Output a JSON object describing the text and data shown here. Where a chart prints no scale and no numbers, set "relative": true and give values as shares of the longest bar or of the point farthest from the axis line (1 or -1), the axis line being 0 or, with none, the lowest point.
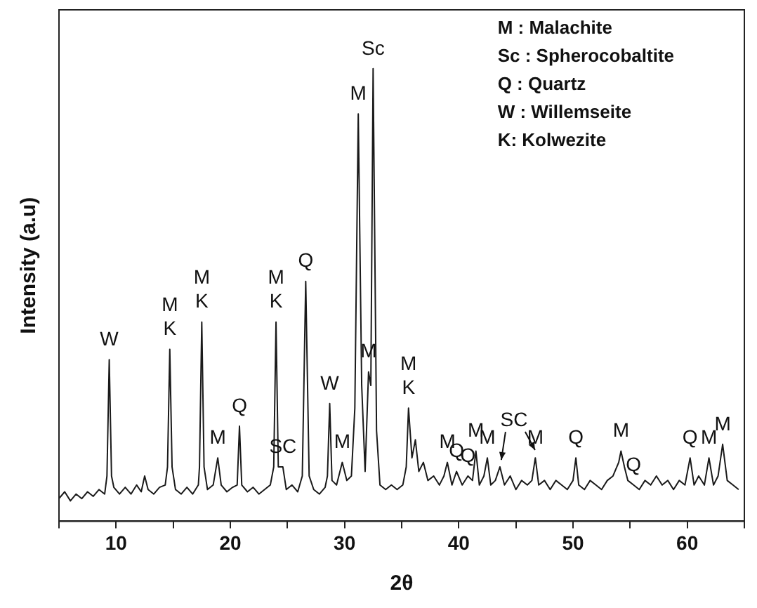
{
  "chart_data": {
    "type": "line",
    "relative": true,
    "xlabel": "2θ",
    "ylabel": "Intensity (a.u)",
    "xlim": [
      5,
      65
    ],
    "xticks": [
      {
        "value": 5,
        "label": null
      },
      10,
      {
        "value": 15,
        "label": null
      },
      20,
      {
        "value": 25,
        "label": null
      },
      30,
      {
        "value": 35,
        "label": null
      },
      40,
      {
        "value": 45,
        "label": null
      },
      50,
      {
        "value": 55,
        "label": null
      },
      60,
      {
        "value": 65,
        "label": null
      }
    ],
    "grid": false,
    "legend": false,
    "marker": "none",
    "line_style": "solid",
    "series": [
      {
        "color": "#1a1a1a",
        "x": [
          5,
          5.5,
          6,
          6.5,
          7,
          7.5,
          8,
          8.5,
          9,
          9.2,
          9.4,
          9.6,
          9.8,
          10.3,
          10.8,
          11.3,
          11.8,
          12.2,
          12.5,
          12.8,
          13.3,
          13.8,
          14.3,
          14.5,
          14.7,
          14.9,
          15.2,
          15.7,
          16.2,
          16.7,
          17.2,
          17.3,
          17.5,
          17.7,
          18,
          18.5,
          18.9,
          19.2,
          19.7,
          20.2,
          20.6,
          20.8,
          21,
          21.5,
          22,
          22.5,
          23,
          23.5,
          23.8,
          24,
          24.2,
          24.6,
          24.9,
          25.4,
          25.9,
          26.3,
          26.6,
          26.9,
          27.3,
          27.8,
          28.3,
          28.5,
          28.7,
          28.9,
          29.3,
          29.8,
          30.2,
          30.6,
          30.9,
          31.2,
          31.5,
          31.8,
          32.1,
          32.3,
          32.5,
          32.8,
          33.1,
          33.6,
          34.1,
          34.6,
          35.1,
          35.4,
          35.6,
          35.9,
          36.2,
          36.5,
          36.9,
          37.3,
          37.8,
          38.3,
          38.7,
          39,
          39.4,
          39.8,
          40.3,
          40.8,
          41.2,
          41.5,
          41.8,
          42.2,
          42.5,
          42.8,
          43.2,
          43.6,
          44,
          44.5,
          45,
          45.5,
          46,
          46.4,
          46.7,
          47,
          47.5,
          48,
          48.5,
          49,
          49.5,
          50,
          50.25,
          50.5,
          51,
          51.5,
          52,
          52.5,
          53,
          53.5,
          54,
          54.2,
          54.5,
          54.8,
          55.3,
          55.8,
          56.3,
          56.8,
          57.3,
          57.8,
          58.3,
          58.8,
          59.3,
          59.8,
          60.25,
          60.6,
          61,
          61.5,
          61.9,
          62.3,
          62.7,
          63.1,
          63.5,
          64,
          64.5
        ],
        "values": [
          0.05,
          0.065,
          0.045,
          0.06,
          0.05,
          0.065,
          0.055,
          0.07,
          0.06,
          0.1,
          0.357,
          0.1,
          0.075,
          0.06,
          0.075,
          0.06,
          0.08,
          0.065,
          0.1,
          0.07,
          0.06,
          0.075,
          0.08,
          0.12,
          0.38,
          0.12,
          0.07,
          0.06,
          0.075,
          0.06,
          0.08,
          0.12,
          0.44,
          0.12,
          0.07,
          0.08,
          0.14,
          0.08,
          0.065,
          0.075,
          0.08,
          0.21,
          0.08,
          0.065,
          0.075,
          0.06,
          0.07,
          0.08,
          0.12,
          0.44,
          0.12,
          0.12,
          0.07,
          0.08,
          0.065,
          0.1,
          0.53,
          0.1,
          0.07,
          0.06,
          0.075,
          0.1,
          0.26,
          0.09,
          0.08,
          0.13,
          0.09,
          0.1,
          0.25,
          0.9,
          0.3,
          0.11,
          0.33,
          0.3,
          1,
          0.2,
          0.08,
          0.07,
          0.08,
          0.07,
          0.08,
          0.12,
          0.25,
          0.14,
          0.18,
          0.11,
          0.13,
          0.09,
          0.1,
          0.08,
          0.1,
          0.13,
          0.08,
          0.11,
          0.08,
          0.1,
          0.09,
          0.155,
          0.08,
          0.1,
          0.14,
          0.08,
          0.09,
          0.12,
          0.08,
          0.1,
          0.07,
          0.09,
          0.08,
          0.09,
          0.14,
          0.08,
          0.09,
          0.07,
          0.09,
          0.08,
          0.07,
          0.09,
          0.14,
          0.08,
          0.07,
          0.09,
          0.08,
          0.07,
          0.09,
          0.1,
          0.13,
          0.155,
          0.12,
          0.09,
          0.08,
          0.07,
          0.09,
          0.08,
          0.1,
          0.08,
          0.09,
          0.07,
          0.09,
          0.08,
          0.14,
          0.08,
          0.1,
          0.08,
          0.14,
          0.08,
          0.1,
          0.17,
          0.09,
          0.08,
          0.07
        ]
      }
    ],
    "annotations": [
      "M : Malachite",
      "Sc : Spherocobaltite",
      "Q : Quartz",
      "W : Willemseite",
      "K: Kolwezite",
      {
        "text": "W",
        "x": 9.4,
        "y": 0.357
      },
      {
        "text": "M",
        "x": 14.7,
        "y": 0.38
      },
      {
        "text": "K",
        "x": 14.7,
        "y": 0.38
      },
      {
        "text": "M",
        "x": 17.5,
        "y": 0.44
      },
      {
        "text": "K",
        "x": 17.5,
        "y": 0.44
      },
      {
        "text": "M",
        "x": 18.9,
        "y": 0.14
      },
      {
        "text": "Q",
        "x": 20.8,
        "y": 0.21
      },
      {
        "text": "M",
        "x": 24,
        "y": 0.44
      },
      {
        "text": "K",
        "x": 24,
        "y": 0.44
      },
      {
        "text": "SC",
        "x": 24.6,
        "y": 0.12
      },
      {
        "text": "Q",
        "x": 26.6,
        "y": 0.53
      },
      {
        "text": "W",
        "x": 28.7,
        "y": 0.26
      },
      {
        "text": "M",
        "x": 29.8,
        "y": 0.13
      },
      {
        "text": "M",
        "x": 31.2,
        "y": 0.9
      },
      {
        "text": "M",
        "x": 32.1,
        "y": 0.33
      },
      {
        "text": "Sc",
        "x": 32.5,
        "y": 1
      },
      {
        "text": "M",
        "x": 35.6,
        "y": 0.25
      },
      {
        "text": "K",
        "x": 35.6,
        "y": 0.25
      },
      {
        "text": "M",
        "x": 39,
        "y": 0.13
      },
      {
        "text": "Q",
        "x": 39.8,
        "y": 0.11
      },
      {
        "text": "Q",
        "x": 40.8,
        "y": 0.1
      },
      {
        "text": "M",
        "x": 41.5,
        "y": 0.155
      },
      {
        "text": "M",
        "x": 42.5,
        "y": 0.14
      },
      {
        "text": "SC",
        "x": 43.6,
        "y": 0.12
      },
      {
        "text": "M",
        "x": 46.7,
        "y": 0.14
      },
      {
        "text": "Q",
        "x": 50.25,
        "y": 0.14
      },
      {
        "text": "M",
        "x": 54.2,
        "y": 0.155
      },
      {
        "text": "Q",
        "x": 55.3,
        "y": 0.08
      },
      {
        "text": "Q",
        "x": 60.25,
        "y": 0.14
      },
      {
        "text": "M",
        "x": 61.9,
        "y": 0.14
      },
      {
        "text": "M",
        "x": 63.1,
        "y": 0.17
      }
    ]
  }
}
